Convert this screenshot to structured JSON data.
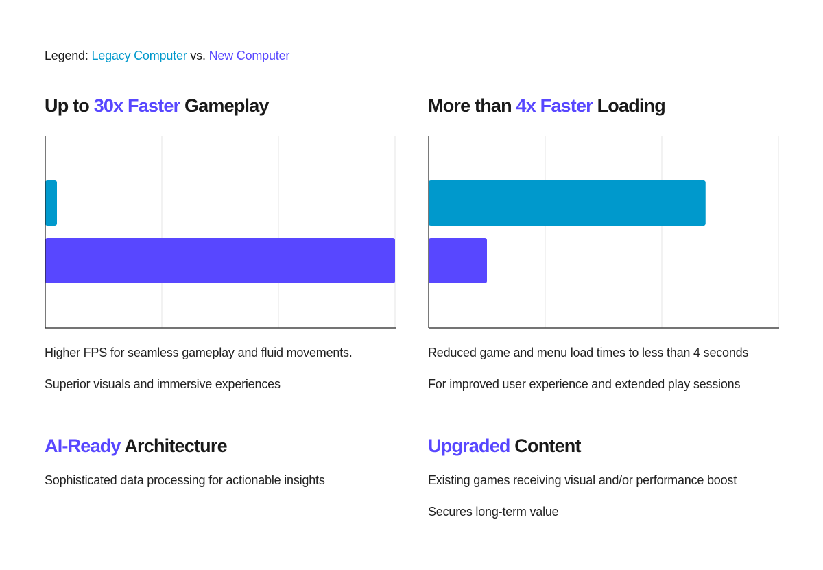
{
  "legend": {
    "prefix": "Legend: ",
    "legacy": "Legacy Computer",
    "vs": " vs. ",
    "new": "New Computer"
  },
  "colors": {
    "legacy": "#0099cc",
    "new": "#5847ff",
    "grid": "#e5e5e5",
    "axis": "#222222"
  },
  "sections": {
    "gameplay": {
      "title_prefix": "Up to ",
      "title_highlight": "30x Faster",
      "title_suffix": " Gameplay",
      "lines": [
        "Higher FPS for seamless gameplay and fluid movements.",
        "Superior visuals and immersive experiences"
      ]
    },
    "loading": {
      "title_prefix": "More than ",
      "title_highlight": "4x Faster",
      "title_suffix": " Loading",
      "lines": [
        "Reduced game and menu load times to less than 4 seconds",
        "For improved user experience and extended play sessions"
      ]
    },
    "ai": {
      "title_prefix": "",
      "title_highlight": "AI-Ready",
      "title_suffix": " Architecture",
      "lines": [
        "Sophisticated data processing for actionable insights"
      ]
    },
    "content": {
      "title_prefix": "",
      "title_highlight": "Upgraded",
      "title_suffix": " Content",
      "lines": [
        "Existing games receiving visual and/or performance boost",
        "Secures long-term value"
      ]
    }
  },
  "chart_data": [
    {
      "type": "bar",
      "orientation": "horizontal",
      "categories": [
        "Legacy Computer",
        "New Computer"
      ],
      "values": [
        1,
        30
      ],
      "xlim": [
        0,
        30
      ],
      "gridlines": 3,
      "grid": true,
      "title": "Up to 30x Faster Gameplay"
    },
    {
      "type": "bar",
      "orientation": "horizontal",
      "categories": [
        "Legacy Computer",
        "New Computer"
      ],
      "values": [
        4.75,
        1
      ],
      "xlim": [
        0,
        6
      ],
      "gridlines": 3,
      "grid": true,
      "title": "More than 4x Faster Loading"
    }
  ]
}
